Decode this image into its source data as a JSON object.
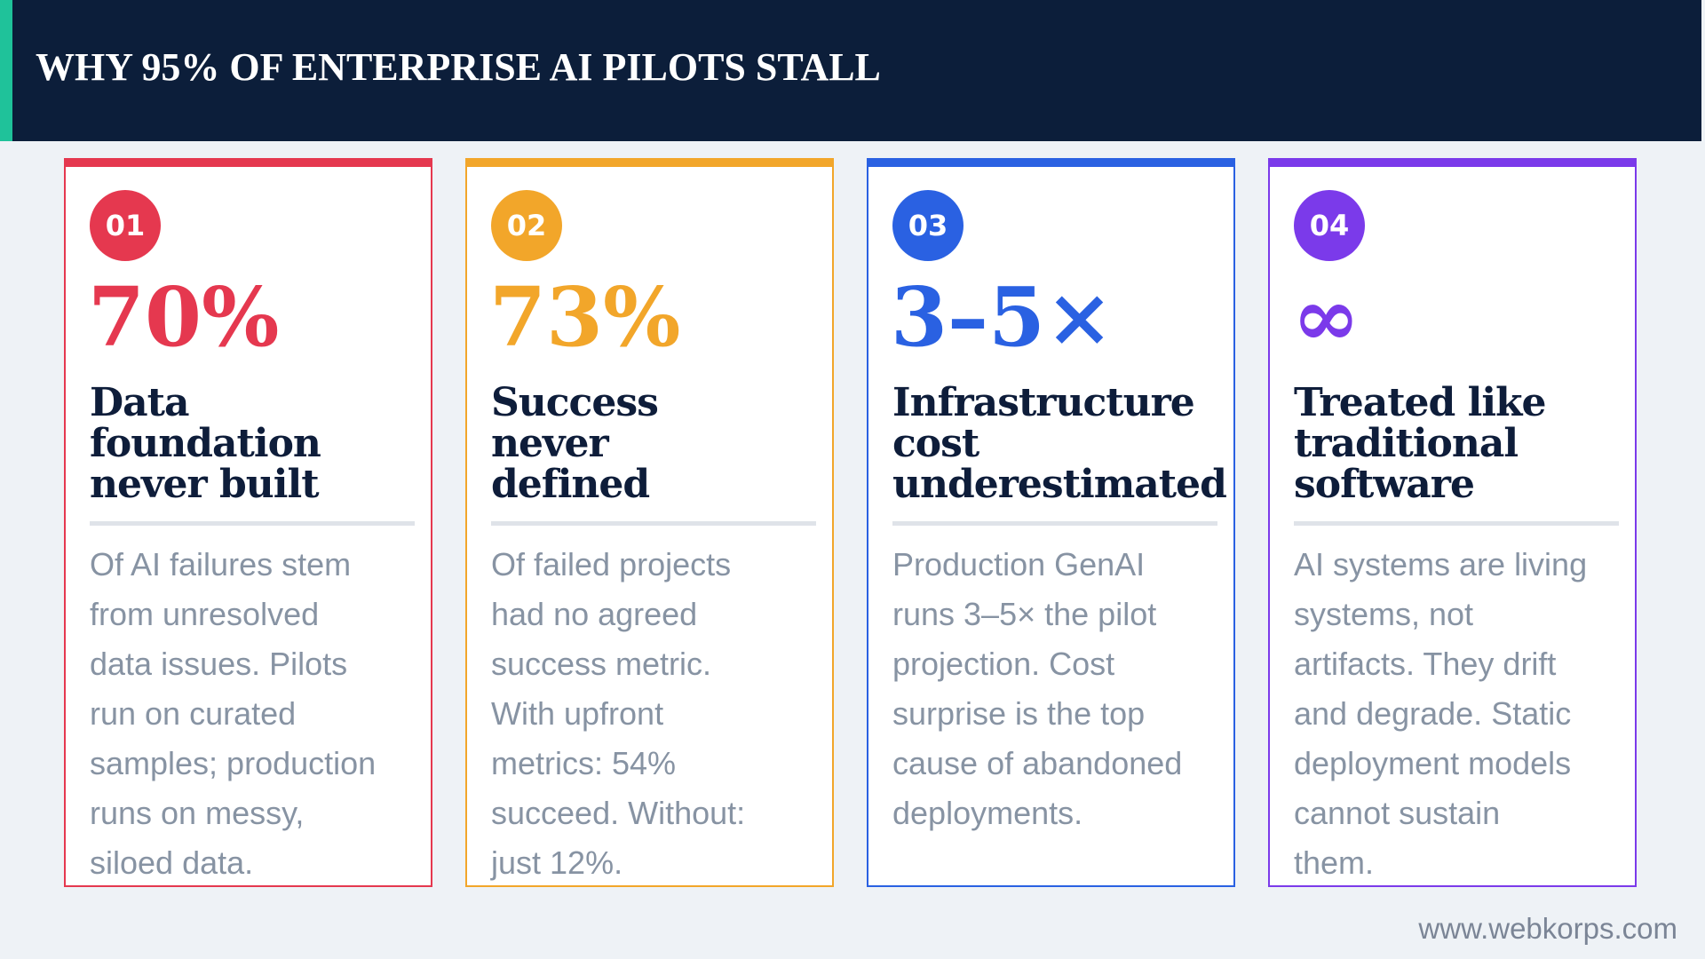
{
  "header": {
    "title": "WHY 95% OF ENTERPRISE AI PILOTS STALL"
  },
  "cards": [
    {
      "number": "01",
      "stat": "70%",
      "color": "#e5384f",
      "heading": [
        "Data",
        "foundation",
        "never built"
      ],
      "body": [
        "Of AI failures stem",
        "from unresolved",
        "data issues. Pilots",
        "run on curated",
        "samples; production",
        "runs on messy,",
        "siloed data."
      ]
    },
    {
      "number": "02",
      "stat": "73%",
      "color": "#f2a62a",
      "heading": [
        "Success",
        "never",
        "defined"
      ],
      "body": [
        "Of failed projects",
        "had no agreed",
        "success metric.",
        "With upfront",
        "metrics: 54%",
        "succeed. Without:",
        "just 12%."
      ]
    },
    {
      "number": "03",
      "stat": "3–5×",
      "color": "#2a61e2",
      "heading": [
        "Infrastructure",
        "cost",
        "underestimated"
      ],
      "body": [
        "Production GenAI",
        "runs 3–5× the pilot",
        "projection. Cost",
        "surprise is the top",
        "cause of abandoned",
        "deployments."
      ]
    },
    {
      "number": "04",
      "stat": "∞",
      "color": "#7b3aea",
      "heading": [
        "Treated like",
        "traditional",
        "software"
      ],
      "body": [
        "AI systems are living",
        "systems, not",
        "artifacts. They drift",
        "and degrade. Static",
        "deployment models",
        "cannot sustain",
        "them."
      ]
    }
  ],
  "footer": {
    "url": "www.webkorps.com"
  }
}
